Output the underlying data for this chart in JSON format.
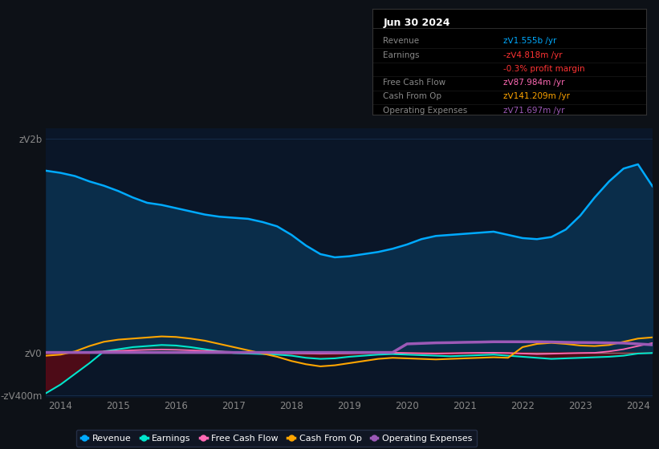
{
  "bg_color": "#0d1117",
  "plot_bg_color": "#0a1628",
  "ylabel_color": "#cccccc",
  "xlabel_color": "#888888",
  "grid_color": "#1e3a5f",
  "revenue_color": "#00aaff",
  "revenue_fill": "#0a2d4a",
  "earnings_color": "#00e5cc",
  "earnings_neg_fill": "#5a0a15",
  "fcf_color": "#ff69b4",
  "cashop_color": "#ffa500",
  "opex_color": "#9b59b6",
  "zero_line_color": "#aaaaaa",
  "legend_bg": "#111827",
  "legend_edge": "#2a3550",
  "years": [
    2013.75,
    2014.0,
    2014.25,
    2014.5,
    2014.75,
    2015.0,
    2015.25,
    2015.5,
    2015.75,
    2016.0,
    2016.25,
    2016.5,
    2016.75,
    2017.0,
    2017.25,
    2017.5,
    2017.75,
    2018.0,
    2018.25,
    2018.5,
    2018.75,
    2019.0,
    2019.25,
    2019.5,
    2019.75,
    2020.0,
    2020.25,
    2020.5,
    2020.75,
    2021.0,
    2021.25,
    2021.5,
    2021.75,
    2022.0,
    2022.25,
    2022.5,
    2022.75,
    2023.0,
    2023.25,
    2023.5,
    2023.75,
    2024.0,
    2024.25
  ],
  "revenue": [
    1700000000,
    1680000000,
    1650000000,
    1600000000,
    1560000000,
    1510000000,
    1450000000,
    1400000000,
    1380000000,
    1350000000,
    1320000000,
    1290000000,
    1270000000,
    1260000000,
    1250000000,
    1220000000,
    1180000000,
    1100000000,
    1000000000,
    920000000,
    890000000,
    900000000,
    920000000,
    940000000,
    970000000,
    1010000000,
    1060000000,
    1090000000,
    1100000000,
    1110000000,
    1120000000,
    1130000000,
    1100000000,
    1070000000,
    1060000000,
    1080000000,
    1150000000,
    1280000000,
    1450000000,
    1600000000,
    1720000000,
    1760000000,
    1555000000
  ],
  "earnings": [
    -380000000,
    -300000000,
    -200000000,
    -100000000,
    10000000,
    30000000,
    50000000,
    60000000,
    70000000,
    65000000,
    50000000,
    30000000,
    10000000,
    -5000000,
    -10000000,
    -15000000,
    -20000000,
    -30000000,
    -50000000,
    -60000000,
    -55000000,
    -40000000,
    -30000000,
    -20000000,
    -15000000,
    -20000000,
    -25000000,
    -30000000,
    -35000000,
    -30000000,
    -25000000,
    -20000000,
    -30000000,
    -40000000,
    -50000000,
    -60000000,
    -55000000,
    -50000000,
    -45000000,
    -40000000,
    -30000000,
    -10000000,
    -4818000
  ],
  "fcf": [
    -5000000,
    -5000000,
    0,
    5000000,
    10000000,
    15000000,
    20000000,
    25000000,
    28000000,
    25000000,
    20000000,
    15000000,
    10000000,
    5000000,
    2000000,
    -2000000,
    -5000000,
    -8000000,
    -10000000,
    -12000000,
    -10000000,
    -8000000,
    -5000000,
    -3000000,
    -2000000,
    -5000000,
    -8000000,
    -10000000,
    -8000000,
    -5000000,
    -3000000,
    -2000000,
    -5000000,
    -10000000,
    -15000000,
    -12000000,
    -8000000,
    -5000000,
    -3000000,
    10000000,
    30000000,
    60000000,
    87984000
  ],
  "cashop": [
    -30000000,
    -20000000,
    10000000,
    60000000,
    100000000,
    120000000,
    130000000,
    140000000,
    150000000,
    145000000,
    130000000,
    110000000,
    80000000,
    50000000,
    20000000,
    -10000000,
    -40000000,
    -80000000,
    -110000000,
    -130000000,
    -120000000,
    -100000000,
    -80000000,
    -60000000,
    -50000000,
    -55000000,
    -60000000,
    -65000000,
    -60000000,
    -55000000,
    -50000000,
    -45000000,
    -50000000,
    50000000,
    80000000,
    90000000,
    80000000,
    65000000,
    60000000,
    70000000,
    100000000,
    130000000,
    141209000
  ],
  "opex": [
    0,
    0,
    0,
    0,
    0,
    0,
    0,
    0,
    0,
    0,
    0,
    0,
    0,
    0,
    0,
    0,
    0,
    0,
    0,
    0,
    0,
    0,
    0,
    0,
    0,
    80000000,
    85000000,
    90000000,
    92000000,
    95000000,
    97000000,
    100000000,
    100000000,
    100000000,
    100000000,
    98000000,
    95000000,
    93000000,
    92000000,
    90000000,
    88000000,
    80000000,
    71697000
  ],
  "ylim": [
    -420000000,
    2100000000
  ],
  "xticks": [
    2014,
    2015,
    2016,
    2017,
    2018,
    2019,
    2020,
    2021,
    2022,
    2023,
    2024
  ],
  "xtick_labels": [
    "2014",
    "2015",
    "2016",
    "2017",
    "2018",
    "2019",
    "2020",
    "2021",
    "2022",
    "2023",
    "2024"
  ],
  "ytick_positions": [
    -400000000,
    0,
    2000000000
  ],
  "ytick_labels": [
    "-zᐯ400m",
    "zᐯ0",
    "zᐯ2b"
  ],
  "info_title": "Jun 30 2024",
  "info_rows": [
    {
      "label": "Revenue",
      "value": "zᐯ1.555b /yr",
      "label_color": "#888888",
      "value_color": "#00aaff"
    },
    {
      "label": "Earnings",
      "value": "-zᐯ4.818m /yr",
      "label_color": "#888888",
      "value_color": "#ff3333"
    },
    {
      "label": "",
      "value": "-0.3% profit margin",
      "label_color": "#888888",
      "value_color": "#ff3333"
    },
    {
      "label": "Free Cash Flow",
      "value": "zᐯ87.984m /yr",
      "label_color": "#888888",
      "value_color": "#ff69b4"
    },
    {
      "label": "Cash From Op",
      "value": "zᐯ141.209m /yr",
      "label_color": "#888888",
      "value_color": "#ffa500"
    },
    {
      "label": "Operating Expenses",
      "value": "zᐯ71.697m /yr",
      "label_color": "#888888",
      "value_color": "#9b59b6"
    }
  ],
  "legend_items": [
    {
      "label": "Revenue",
      "color": "#00aaff"
    },
    {
      "label": "Earnings",
      "color": "#00e5cc"
    },
    {
      "label": "Free Cash Flow",
      "color": "#ff69b4"
    },
    {
      "label": "Cash From Op",
      "color": "#ffa500"
    },
    {
      "label": "Operating Expenses",
      "color": "#9b59b6"
    }
  ]
}
